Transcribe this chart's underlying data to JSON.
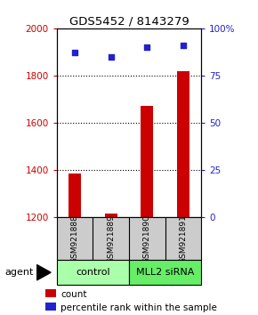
{
  "title": "GDS5452 / 8143279",
  "samples": [
    "GSM921888",
    "GSM921889",
    "GSM921890",
    "GSM921891"
  ],
  "count_values": [
    1385,
    1215,
    1670,
    1820
  ],
  "percentile_values": [
    87,
    85,
    90,
    91
  ],
  "ylim_left": [
    1200,
    2000
  ],
  "ylim_right": [
    0,
    100
  ],
  "yticks_left": [
    1200,
    1400,
    1600,
    1800,
    2000
  ],
  "yticks_right": [
    0,
    25,
    50,
    75,
    100
  ],
  "ytick_labels_right": [
    "0",
    "25",
    "50",
    "75",
    "100%"
  ],
  "bar_color": "#cc0000",
  "scatter_color": "#2222cc",
  "groups": [
    {
      "label": "control",
      "indices": [
        0,
        1
      ],
      "color": "#aaffaa"
    },
    {
      "label": "MLL2 siRNA",
      "indices": [
        2,
        3
      ],
      "color": "#66ee66"
    }
  ],
  "sample_box_color": "#cccccc",
  "legend_count_label": "count",
  "legend_pct_label": "percentile rank within the sample",
  "agent_label": "agent",
  "bar_width": 0.35,
  "gridline_ticks": [
    1400,
    1600,
    1800
  ]
}
